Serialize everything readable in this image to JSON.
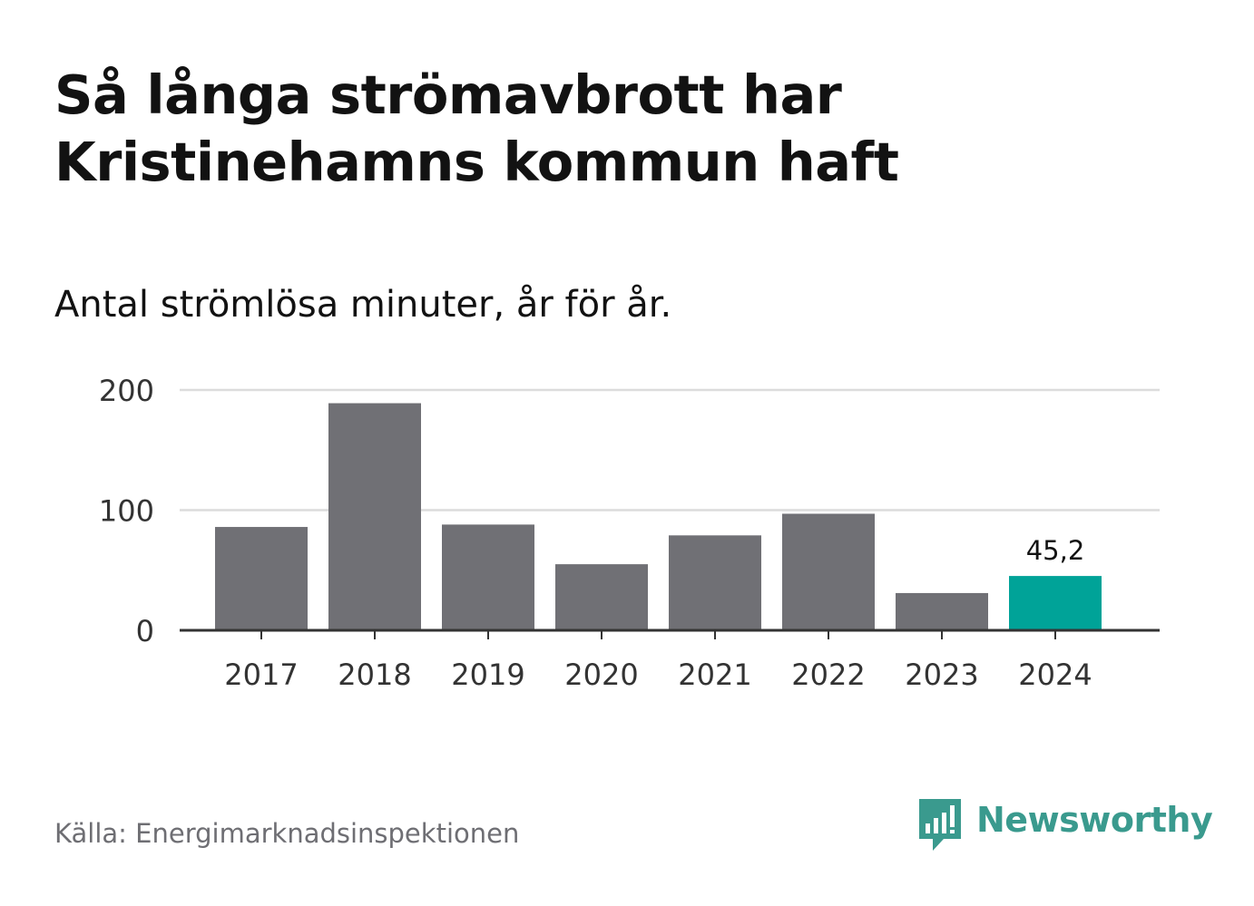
{
  "header": {
    "title_line1": "Så långa strömavbrott har",
    "title_line2": "Kristinehamns kommun haft",
    "subtitle": "Antal strömlösa minuter, år för år."
  },
  "footer": {
    "source": "Källa: Energimarknadsinspektionen",
    "brand": "Newsworthy"
  },
  "colors": {
    "bar": "#707075",
    "highlight": "#00a398",
    "grid": "#dcdcdc",
    "axis": "#333333",
    "text": "#333333",
    "brand": "#3a9a8e"
  },
  "chart_data": {
    "type": "bar",
    "title": "Så långa strömavbrott har Kristinehamns kommun haft",
    "subtitle": "Antal strömlösa minuter, år för år.",
    "categories": [
      "2017",
      "2018",
      "2019",
      "2020",
      "2021",
      "2022",
      "2023",
      "2024"
    ],
    "values": [
      86,
      189,
      88,
      55,
      79,
      97,
      31,
      45.2
    ],
    "highlight_index": 7,
    "data_labels": [
      null,
      null,
      null,
      null,
      null,
      null,
      null,
      "45,2"
    ],
    "yticks": [
      0,
      100,
      200
    ],
    "ytick_labels": [
      "0",
      "100",
      "200"
    ],
    "ylim": [
      0,
      200
    ],
    "xlabel": "",
    "ylabel": "",
    "grid": true
  }
}
